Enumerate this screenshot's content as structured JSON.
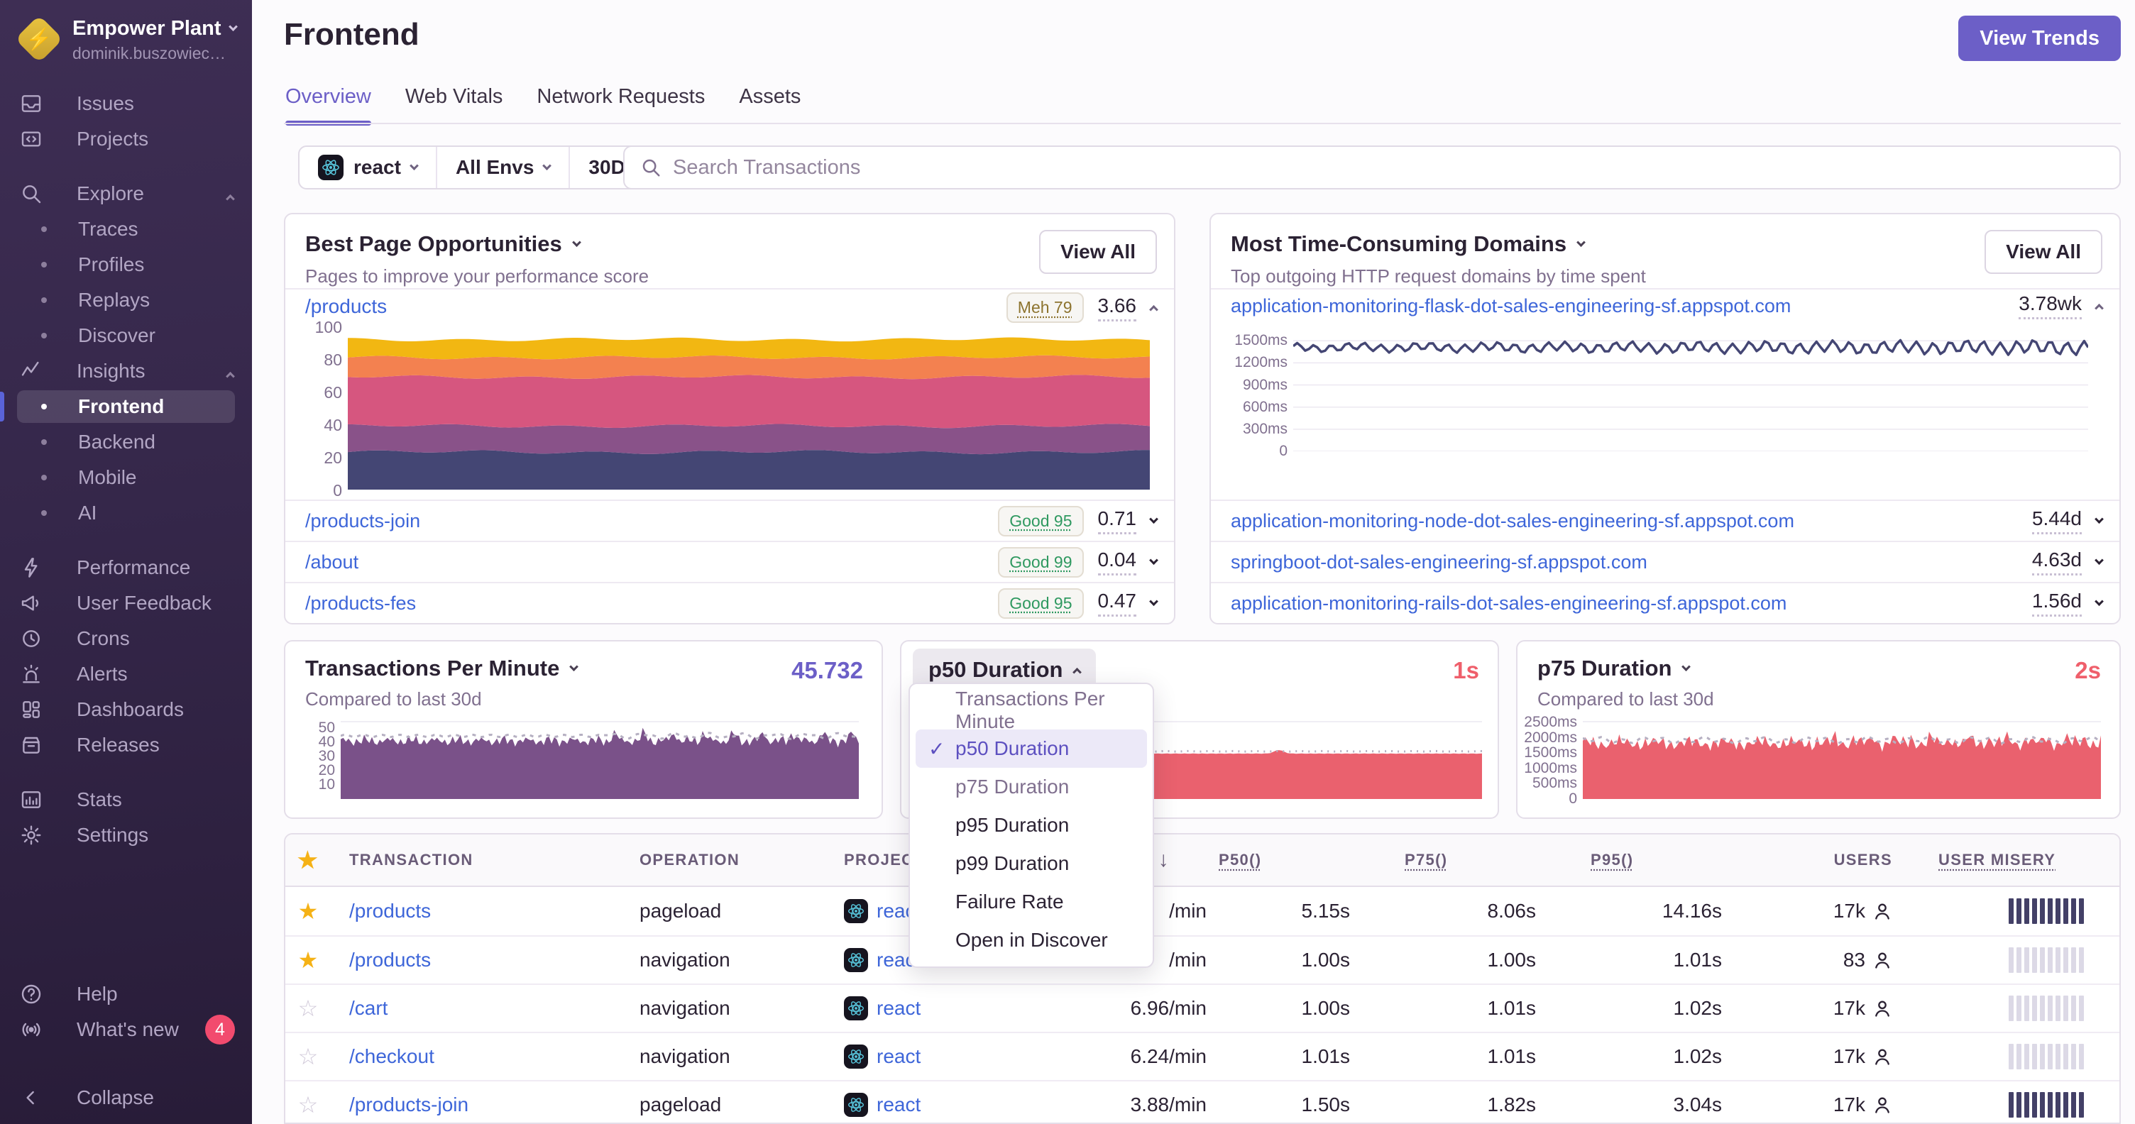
{
  "colors": {
    "accent": "#6c5fc7",
    "link": "#3e66d9",
    "red_value": "#ef5f6b",
    "purple_value": "#6c5fc7",
    "badge_pink": "#f24b6e",
    "star_yellow": "#f5b216",
    "misery_high": "#434067",
    "misery_low": "#dcd9e6",
    "chart_palette": [
      "#444674",
      "#895289",
      "#d6567f",
      "#f38150",
      "#f2b712"
    ],
    "tpm_purple": "#7a5189",
    "duration_red": "#ea616e"
  },
  "sidebar": {
    "org": {
      "name": "Empower Plant",
      "subtitle": "dominik.buszowiec…"
    },
    "sections": [
      {
        "items": [
          {
            "id": "issues",
            "icon": "issues",
            "label": "Issues"
          },
          {
            "id": "projects",
            "icon": "projects",
            "label": "Projects"
          }
        ]
      },
      {
        "items": [
          {
            "id": "explore",
            "icon": "search",
            "label": "Explore",
            "chevron": "up"
          },
          {
            "id": "traces",
            "bullet": true,
            "label": "Traces"
          },
          {
            "id": "profiles",
            "bullet": true,
            "label": "Profiles"
          },
          {
            "id": "replays",
            "bullet": true,
            "label": "Replays"
          },
          {
            "id": "discover",
            "bullet": true,
            "label": "Discover"
          },
          {
            "id": "insights",
            "icon": "insights",
            "label": "Insights",
            "chevron": "up"
          },
          {
            "id": "frontend",
            "bullet": true,
            "label": "Frontend",
            "selected": true
          },
          {
            "id": "backend",
            "bullet": true,
            "label": "Backend"
          },
          {
            "id": "mobile",
            "bullet": true,
            "label": "Mobile"
          },
          {
            "id": "ai",
            "bullet": true,
            "label": "AI"
          }
        ]
      },
      {
        "items": [
          {
            "id": "performance",
            "icon": "lightning",
            "label": "Performance"
          },
          {
            "id": "user-feedback",
            "icon": "megaphone",
            "label": "User Feedback"
          },
          {
            "id": "crons",
            "icon": "clock",
            "label": "Crons"
          },
          {
            "id": "alerts",
            "icon": "siren",
            "label": "Alerts"
          },
          {
            "id": "dashboards",
            "icon": "dashboards",
            "label": "Dashboards"
          },
          {
            "id": "releases",
            "icon": "releases",
            "label": "Releases"
          }
        ]
      },
      {
        "items": [
          {
            "id": "stats",
            "icon": "stats",
            "label": "Stats"
          },
          {
            "id": "settings",
            "icon": "gear",
            "label": "Settings"
          }
        ]
      }
    ],
    "footer": [
      {
        "id": "help",
        "icon": "help",
        "label": "Help"
      },
      {
        "id": "whats-new",
        "icon": "broadcast",
        "label": "What's new",
        "badge": "4"
      },
      {
        "id": "collapse",
        "icon": "chevron-left",
        "label": "Collapse",
        "collapse": true
      }
    ]
  },
  "header": {
    "title": "Frontend",
    "view_trends": "View Trends",
    "tabs": [
      {
        "label": "Overview",
        "active": true
      },
      {
        "label": "Web Vitals"
      },
      {
        "label": "Network Requests"
      },
      {
        "label": "Assets"
      }
    ]
  },
  "filters": {
    "project": "react",
    "env": "All Envs",
    "period": "30D",
    "search_placeholder": "Search Transactions"
  },
  "panels": {
    "best_pages": {
      "title": "Best Page Opportunities",
      "subtitle": "Pages to improve your performance score",
      "view_all": "View All",
      "rows": [
        {
          "path": "/products",
          "badge": "Meh 79",
          "tone": "meh",
          "value": "3.66",
          "expanded": true
        },
        {
          "path": "/products-join",
          "badge": "Good 95",
          "tone": "good",
          "value": "0.71"
        },
        {
          "path": "/about",
          "badge": "Good 99",
          "tone": "good",
          "value": "0.04"
        },
        {
          "path": "/products-fes",
          "badge": "Good 95",
          "tone": "good",
          "value": "0.47"
        }
      ]
    },
    "domains": {
      "title": "Most Time-Consuming Domains",
      "subtitle": "Top outgoing HTTP request domains by time spent",
      "view_all": "View All",
      "rows": [
        {
          "domain": "application-monitoring-flask-dot-sales-engineering-sf.appspot.com",
          "value": "3.78wk",
          "expanded": true
        },
        {
          "domain": "application-monitoring-node-dot-sales-engineering-sf.appspot.com",
          "value": "5.44d"
        },
        {
          "domain": "springboot-dot-sales-engineering-sf.appspot.com",
          "value": "4.63d"
        },
        {
          "domain": "application-monitoring-rails-dot-sales-engineering-sf.appspot.com",
          "value": "1.56d"
        }
      ]
    },
    "tpm": {
      "title": "Transactions Per Minute",
      "value": "45.732",
      "subtitle": "Compared to last 30d"
    },
    "p50": {
      "title": "p50 Duration",
      "value": "1s"
    },
    "p75": {
      "title": "p75 Duration",
      "value": "2s",
      "subtitle": "Compared to last 30d"
    }
  },
  "dropdown": {
    "items": [
      {
        "label": "Transactions Per Minute",
        "muted": true
      },
      {
        "label": "p50 Duration",
        "checked": true
      },
      {
        "label": "p75 Duration",
        "muted": true
      },
      {
        "label": "p95 Duration"
      },
      {
        "label": "p99 Duration"
      },
      {
        "label": "Failure Rate"
      },
      {
        "label": "Open in Discover"
      }
    ],
    "check_glyph": "✓"
  },
  "table": {
    "columns": {
      "transaction": "TRANSACTION",
      "operation": "OPERATION",
      "project": "PROJECT",
      "p50": "P50()",
      "p75": "P75()",
      "p95": "P95()",
      "users": "USERS",
      "misery": "USER MISERY"
    },
    "sort_arrow": "↓",
    "rows": [
      {
        "starred": true,
        "transaction": "/products",
        "operation": "pageload",
        "project": "react",
        "tpm": "/min",
        "p50": "5.15s",
        "p75": "8.06s",
        "p95": "14.16s",
        "users": "17k",
        "misery": "high"
      },
      {
        "starred": true,
        "transaction": "/products",
        "operation": "navigation",
        "project": "react",
        "tpm": "/min",
        "p50": "1.00s",
        "p75": "1.00s",
        "p95": "1.01s",
        "users": "83",
        "misery": "low"
      },
      {
        "starred": false,
        "transaction": "/cart",
        "operation": "navigation",
        "project": "react",
        "tpm": "6.96/min",
        "p50": "1.00s",
        "p75": "1.01s",
        "p95": "1.02s",
        "users": "17k",
        "misery": "low"
      },
      {
        "starred": false,
        "transaction": "/checkout",
        "operation": "navigation",
        "project": "react",
        "tpm": "6.24/min",
        "p50": "1.01s",
        "p75": "1.01s",
        "p95": "1.02s",
        "users": "17k",
        "misery": "low"
      },
      {
        "starred": false,
        "transaction": "/products-join",
        "operation": "pageload",
        "project": "react",
        "tpm": "3.88/min",
        "p50": "1.50s",
        "p75": "1.82s",
        "p95": "3.04s",
        "users": "17k",
        "misery": "high"
      }
    ]
  },
  "chart_data": [
    {
      "id": "page-score-products",
      "type": "area",
      "stacked": true,
      "title": "/products performance score breakdown (stacked, ~constant over 30d)",
      "ylim": [
        0,
        100
      ],
      "grid": "none",
      "yticks": [
        {
          "v": 0,
          "label": "0"
        },
        {
          "v": 20,
          "label": "20"
        },
        {
          "v": 40,
          "label": "40"
        },
        {
          "v": 60,
          "label": "60"
        },
        {
          "v": 80,
          "label": "80"
        },
        {
          "v": 100,
          "label": "100"
        }
      ],
      "series": [
        {
          "name": "band-1",
          "color": "#444674",
          "top": 23
        },
        {
          "name": "band-2",
          "color": "#895289",
          "top": 39
        },
        {
          "name": "band-3",
          "color": "#d6567f",
          "top": 69
        },
        {
          "name": "band-4",
          "color": "#f38150",
          "top": 81
        },
        {
          "name": "band-5",
          "color": "#f2b712",
          "top": 92
        }
      ]
    },
    {
      "id": "domain-flask",
      "type": "line",
      "title": "avg duration, application-monitoring-flask (~1.4s)",
      "color": "#444674",
      "ylim": [
        0,
        1560
      ],
      "grid": "all",
      "base": 1410,
      "yticks": [
        {
          "v": 0,
          "label": "0"
        },
        {
          "v": 300,
          "label": "300ms"
        },
        {
          "v": 600,
          "label": "600ms"
        },
        {
          "v": 900,
          "label": "900ms"
        },
        {
          "v": 1200,
          "label": "1200ms"
        },
        {
          "v": 1500,
          "label": "1500ms"
        }
      ]
    },
    {
      "id": "tpm-chart",
      "type": "area",
      "title": "Transactions Per Minute (~41-50/min)",
      "color": "#7a5189",
      "ylim": [
        0,
        56
      ],
      "grid": "top",
      "base": 41,
      "compare": 44.5,
      "yticks": [
        {
          "v": 10,
          "label": "10"
        },
        {
          "v": 20,
          "label": "20"
        },
        {
          "v": 30,
          "label": "30"
        },
        {
          "v": 40,
          "label": "40"
        },
        {
          "v": 50,
          "label": "50"
        }
      ]
    },
    {
      "id": "p50-chart",
      "type": "area",
      "title": "p50 Duration (~1s flat)",
      "color": "#ea616e",
      "ylim": [
        0,
        1.75
      ],
      "grid": "top",
      "base": 1.0,
      "compare": 1.05,
      "yticks": []
    },
    {
      "id": "p75-chart",
      "type": "area",
      "title": "p75 Duration (~1.8-2.2s jagged)",
      "color": "#ea616e",
      "ylim": [
        0,
        2600
      ],
      "grid": "top",
      "base": 1830,
      "compare": 1925,
      "yticks": [
        {
          "v": 0,
          "label": "0"
        },
        {
          "v": 500,
          "label": "500ms"
        },
        {
          "v": 1000,
          "label": "1000ms"
        },
        {
          "v": 1500,
          "label": "1500ms"
        },
        {
          "v": 2000,
          "label": "2000ms"
        },
        {
          "v": 2500,
          "label": "2500ms"
        }
      ]
    }
  ]
}
